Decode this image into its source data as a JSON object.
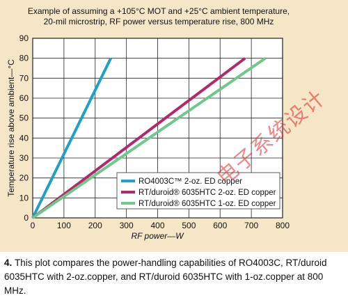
{
  "chart_data": {
    "type": "line",
    "title": "Example of assuming a +105°C MOT and +25°C ambient temperature, 20-mil microstrip, RF power versus temperature rise, 800 MHz",
    "title_lines": [
      "Example of assuming a +105°C MOT and +25°C ambient temperature,",
      "20-mil microstrip, RF power versus temperature rise, 800 MHz"
    ],
    "xlabel": "RF power—W",
    "ylabel": "Temperature rise above ambient—°C",
    "xlim": [
      0,
      800
    ],
    "ylim": [
      0,
      90
    ],
    "xticks": [
      0,
      100,
      200,
      300,
      400,
      500,
      600,
      700,
      800
    ],
    "yticks": [
      0,
      10,
      20,
      30,
      40,
      50,
      60,
      70,
      80,
      90
    ],
    "grid": true,
    "legend_position": "lower-right",
    "series": [
      {
        "name": "RO4003C™ 2-oz. ED copper",
        "color": "#1fa0c9",
        "x": [
          0,
          250
        ],
        "y": [
          0,
          80
        ]
      },
      {
        "name": "RT/duroid® 6035HTC 2-oz. ED copper",
        "color": "#b4286a",
        "x": [
          0,
          680
        ],
        "y": [
          0,
          80
        ]
      },
      {
        "name": "RT/duroid® 6035HTC 1-oz. ED copper",
        "color": "#6ec88a",
        "x": [
          0,
          745
        ],
        "y": [
          0,
          80
        ]
      }
    ]
  },
  "caption": {
    "number": "4.",
    "text": "This plot compares the power-handling capabilities of RO4003C, RT/duroid 6035HTC with 2-oz.copper, and RT/duroid 6035HTC with 1-oz.copper at 800 MHz."
  },
  "watermark": "电子系统设计"
}
